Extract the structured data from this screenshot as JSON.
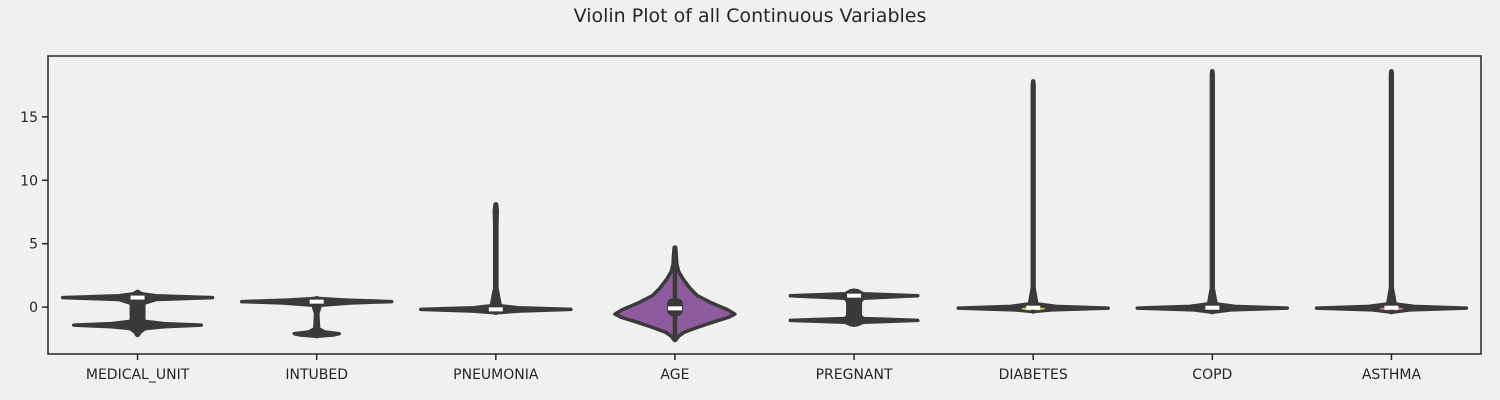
{
  "chart_data": {
    "type": "violin",
    "title": "Violin Plot of all Continuous Variables",
    "xlabel": "",
    "ylabel": "",
    "ylim": [
      -3.7,
      19.8
    ],
    "yticks": [
      0,
      5,
      10,
      15
    ],
    "grid": false,
    "legend": "none",
    "categories": [
      "MEDICAL_UNIT",
      "INTUBED",
      "PNEUMONIA",
      "AGE",
      "PREGNANT",
      "DIABETES",
      "COPD",
      "ASTHMA"
    ],
    "violins": [
      {
        "category": "MEDICAL_UNIT",
        "color": "#3a3a3a",
        "min": -2.2,
        "max": 1.2,
        "q1": -1.5,
        "median": 0.75,
        "q3": 0.95,
        "profile": [
          [
            -2.2,
            0.01
          ],
          [
            -1.95,
            0.04
          ],
          [
            -1.7,
            0.1
          ],
          [
            -1.55,
            0.35
          ],
          [
            -1.42,
            0.85
          ],
          [
            -1.3,
            0.35
          ],
          [
            -1.1,
            0.06
          ],
          [
            -0.5,
            0.035
          ],
          [
            0.2,
            0.035
          ],
          [
            0.6,
            0.25
          ],
          [
            0.75,
            1.0
          ],
          [
            0.9,
            0.25
          ],
          [
            1.05,
            0.06
          ],
          [
            1.2,
            0.01
          ]
        ]
      },
      {
        "category": "INTUBED",
        "color": "#3a3a3a",
        "min": -2.3,
        "max": 0.7,
        "q1": 0.3,
        "median": 0.43,
        "q3": 0.55,
        "profile": [
          [
            -2.3,
            0.01
          ],
          [
            -2.2,
            0.22
          ],
          [
            -2.1,
            0.3
          ],
          [
            -1.95,
            0.1
          ],
          [
            -1.7,
            0.025
          ],
          [
            -0.5,
            0.015
          ],
          [
            0.15,
            0.05
          ],
          [
            0.32,
            0.45
          ],
          [
            0.43,
            1.0
          ],
          [
            0.55,
            0.4
          ],
          [
            0.65,
            0.08
          ],
          [
            0.7,
            0.01
          ]
        ]
      },
      {
        "category": "PNEUMONIA",
        "color": "#3a3a3a",
        "min": -0.45,
        "max": 8.1,
        "q1": -0.3,
        "median": -0.18,
        "q3": -0.05,
        "profile": [
          [
            -0.45,
            0.01
          ],
          [
            -0.32,
            0.3
          ],
          [
            -0.18,
            1.0
          ],
          [
            -0.05,
            0.3
          ],
          [
            0.1,
            0.06
          ],
          [
            1.5,
            0.015
          ],
          [
            6.5,
            0.015
          ],
          [
            7.6,
            0.02
          ],
          [
            8.1,
            0.01
          ]
        ]
      },
      {
        "category": "AGE",
        "color": "#8e5c9e",
        "min": -2.6,
        "max": 4.7,
        "q1": -0.7,
        "median": -0.1,
        "q3": 0.7,
        "profile": [
          [
            -2.6,
            0.01
          ],
          [
            -2.3,
            0.05
          ],
          [
            -2.0,
            0.12
          ],
          [
            -1.6,
            0.3
          ],
          [
            -1.2,
            0.5
          ],
          [
            -0.8,
            0.72
          ],
          [
            -0.55,
            0.8
          ],
          [
            -0.2,
            0.7
          ],
          [
            0.3,
            0.5
          ],
          [
            0.9,
            0.3
          ],
          [
            1.5,
            0.2
          ],
          [
            2.2,
            0.11
          ],
          [
            2.8,
            0.05
          ],
          [
            3.4,
            0.025
          ],
          [
            4.0,
            0.02
          ],
          [
            4.7,
            0.01
          ]
        ]
      },
      {
        "category": "PREGNANT",
        "color": "#3a3a3a",
        "min": -1.4,
        "max": 1.3,
        "q1": -1.05,
        "median": 0.9,
        "q3": 1.0,
        "profile": [
          [
            -1.4,
            0.04
          ],
          [
            -1.2,
            0.12
          ],
          [
            -1.05,
            0.85
          ],
          [
            -0.9,
            0.12
          ],
          [
            -0.6,
            0.07
          ],
          [
            0.3,
            0.07
          ],
          [
            0.7,
            0.12
          ],
          [
            0.9,
            0.85
          ],
          [
            1.05,
            0.12
          ],
          [
            1.3,
            0.04
          ]
        ]
      },
      {
        "category": "DIABETES",
        "color": "#3a3a3a",
        "tint": "#d6d35a",
        "min": -0.35,
        "max": 17.8,
        "q1": -0.15,
        "median": -0.05,
        "q3": 0.15,
        "profile": [
          [
            -0.35,
            0.01
          ],
          [
            -0.22,
            0.25
          ],
          [
            -0.08,
            1.0
          ],
          [
            0.05,
            0.3
          ],
          [
            0.25,
            0.05
          ],
          [
            1.5,
            0.012
          ],
          [
            17.5,
            0.012
          ],
          [
            17.8,
            0.005
          ]
        ]
      },
      {
        "category": "COPD",
        "color": "#3a3a3a",
        "min": -0.4,
        "max": 18.6,
        "q1": -0.15,
        "median": -0.05,
        "q3": 0.15,
        "profile": [
          [
            -0.4,
            0.01
          ],
          [
            -0.22,
            0.25
          ],
          [
            -0.08,
            1.0
          ],
          [
            0.05,
            0.3
          ],
          [
            0.25,
            0.05
          ],
          [
            1.5,
            0.012
          ],
          [
            18.4,
            0.012
          ],
          [
            18.6,
            0.005
          ]
        ]
      },
      {
        "category": "ASTHMA",
        "color": "#3a3a3a",
        "tint": "#d07ca4",
        "min": -0.4,
        "max": 18.6,
        "q1": -0.15,
        "median": -0.05,
        "q3": 0.15,
        "profile": [
          [
            -0.4,
            0.01
          ],
          [
            -0.22,
            0.25
          ],
          [
            -0.08,
            1.0
          ],
          [
            0.05,
            0.3
          ],
          [
            0.25,
            0.05
          ],
          [
            1.5,
            0.012
          ],
          [
            18.4,
            0.012
          ],
          [
            18.6,
            0.005
          ]
        ]
      }
    ]
  }
}
